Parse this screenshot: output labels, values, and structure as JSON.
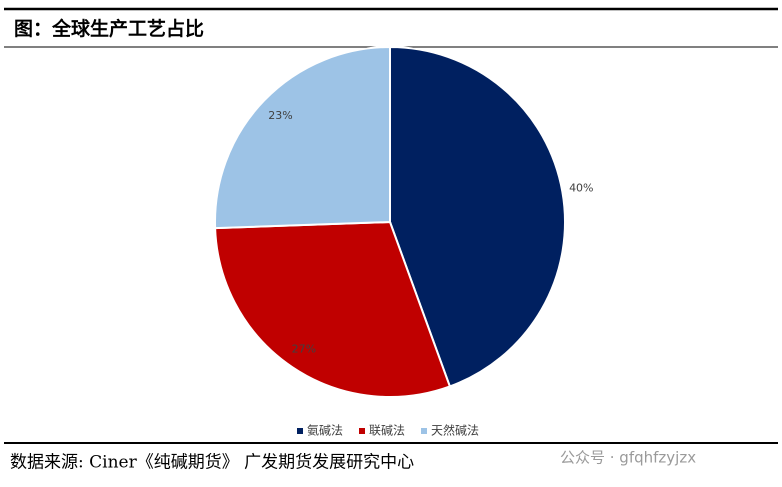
{
  "chart_data": {
    "type": "pie",
    "title": "图：全球生产工艺占比",
    "categories": [
      "氨碱法",
      "联碱法",
      "天然碱法"
    ],
    "values": [
      40,
      27,
      23
    ],
    "value_labels": [
      "40%",
      "27%",
      "23%"
    ],
    "colors": [
      "#002060",
      "#c00000",
      "#9dc3e6"
    ],
    "legend": "bottom",
    "source": "数据来源: Ciner《纯碱期货》 广发期货发展研究中心",
    "watermark": "公众号 · gfqhfzyjzx"
  }
}
